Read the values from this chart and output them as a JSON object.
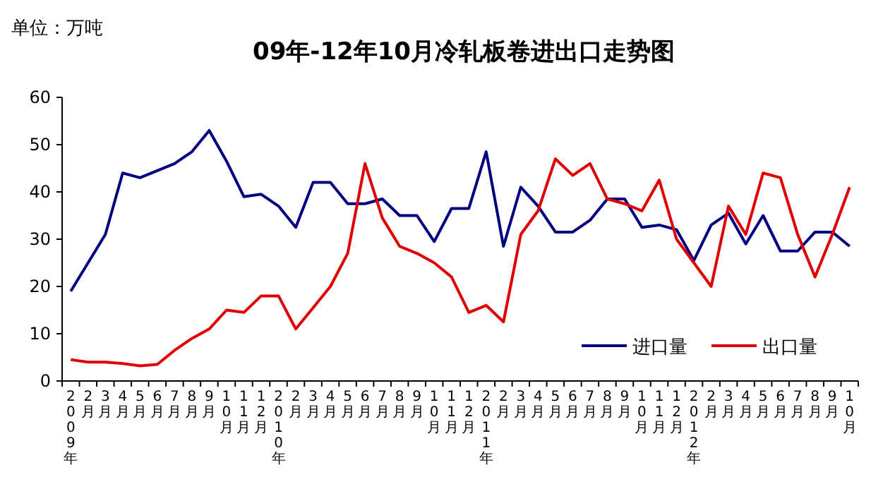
{
  "chart_data": {
    "type": "line",
    "title": "09年-12年10月冷轧板卷进出口走势图",
    "ylabel": "单位：万吨",
    "categories": [
      "2009年",
      "2月",
      "3月",
      "4月",
      "5月",
      "6月",
      "7月",
      "8月",
      "9月",
      "10月",
      "11月",
      "12月",
      "2010年",
      "2月",
      "3月",
      "4月",
      "5月",
      "6月",
      "7月",
      "8月",
      "9月",
      "10月",
      "11月",
      "12月",
      "2011年",
      "2月",
      "3月",
      "4月",
      "5月",
      "6月",
      "7月",
      "8月",
      "9月",
      "10月",
      "11月",
      "12月",
      "2012年",
      "2月",
      "3月",
      "4月",
      "5月",
      "6月",
      "7月",
      "8月",
      "9月",
      "10月"
    ],
    "series": [
      {
        "name": "进口量",
        "color": "#000080",
        "values": [
          19,
          25,
          31,
          44,
          43,
          44.5,
          46,
          48.5,
          53,
          46.5,
          39,
          39.5,
          37,
          32.5,
          42,
          42,
          37.5,
          37.5,
          38.5,
          35,
          35,
          29.5,
          36.5,
          36.5,
          48.5,
          28.5,
          41,
          37,
          31.5,
          31.5,
          34,
          38.5,
          38.5,
          32.5,
          33,
          32,
          25.5,
          33,
          35.5,
          29,
          35,
          27.5,
          27.5,
          31.5,
          31.5,
          28.5
        ]
      },
      {
        "name": "出口量",
        "color": "#e00000",
        "values": [
          4.5,
          4,
          4,
          3.7,
          3.2,
          3.5,
          6.5,
          9,
          11,
          15,
          14.5,
          18,
          18,
          11,
          15.5,
          20,
          27,
          46,
          34.5,
          28.5,
          27,
          25,
          22,
          14.5,
          16,
          12.5,
          31,
          36,
          47,
          43.5,
          46,
          38.5,
          37.5,
          36,
          42.5,
          30,
          25,
          20,
          37,
          31,
          44,
          43,
          31,
          22,
          31,
          41
        ]
      }
    ],
    "ylim": [
      0,
      60
    ],
    "yticks": [
      0,
      10,
      20,
      30,
      40,
      50,
      60
    ],
    "grid": false,
    "legend": "bottom right",
    "marker": "none",
    "line_style": "solid"
  }
}
